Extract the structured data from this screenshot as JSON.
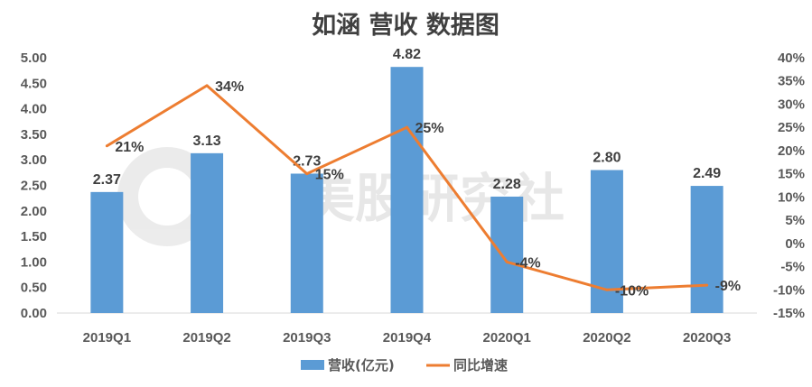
{
  "chart_data": {
    "type": "bar",
    "title": "如涵 营收 数据图",
    "categories": [
      "2019Q1",
      "2019Q2",
      "2019Q3",
      "2019Q4",
      "2020Q1",
      "2020Q2",
      "2020Q3"
    ],
    "series": [
      {
        "name": "营收(亿元)",
        "type": "bar",
        "axis": "left",
        "color": "#5B9BD5",
        "values": [
          2.37,
          3.13,
          2.73,
          4.82,
          2.28,
          2.8,
          2.49
        ],
        "labels": [
          "2.37",
          "3.13",
          "2.73",
          "4.82",
          "2.28",
          "2.80",
          "2.49"
        ]
      },
      {
        "name": "同比增速",
        "type": "line",
        "axis": "right",
        "color": "#ED7D31",
        "values": [
          21,
          34,
          15,
          25,
          -4,
          -10,
          -9
        ],
        "labels": [
          "21%",
          "34%",
          "15%",
          "25%",
          "-4%",
          "-10%",
          "-9%"
        ]
      }
    ],
    "y_left": {
      "min": 0,
      "max": 5,
      "step": 0.5,
      "ticks": [
        "0.00",
        "0.50",
        "1.00",
        "1.50",
        "2.00",
        "2.50",
        "3.00",
        "3.50",
        "4.00",
        "4.50",
        "5.00"
      ]
    },
    "y_right": {
      "min": -15,
      "max": 40,
      "step": 5,
      "ticks": [
        "-15%",
        "-10%",
        "-5%",
        "0%",
        "5%",
        "10%",
        "15%",
        "20%",
        "25%",
        "30%",
        "35%",
        "40%"
      ]
    },
    "grid": false,
    "legend_position": "bottom",
    "watermark": "美股研究社"
  }
}
